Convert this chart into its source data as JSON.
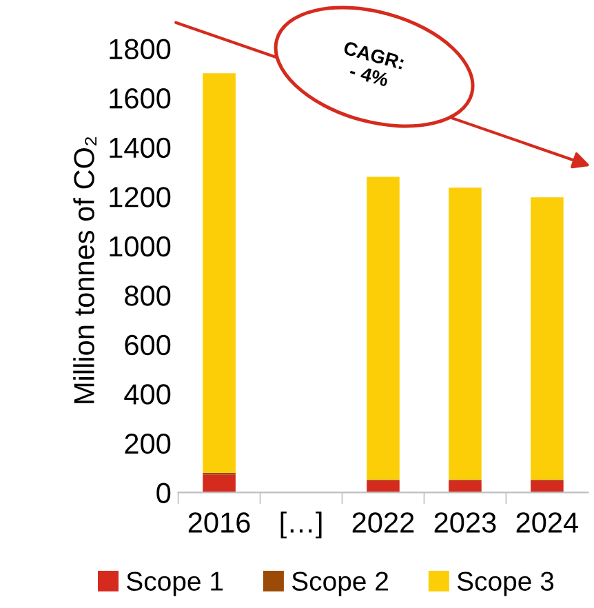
{
  "chart_data": {
    "type": "bar",
    "stacked": true,
    "ylabel": "Million tonnes of CO₂",
    "categories": [
      "2016",
      "[…]",
      "2022",
      "2023",
      "2024"
    ],
    "series": [
      {
        "name": "Scope 1",
        "color": "#d52b1e",
        "values": [
          72,
          null,
          48,
          48,
          48
        ]
      },
      {
        "name": "Scope 2",
        "color": "#9c4a07",
        "values": [
          8,
          null,
          4,
          4,
          4
        ]
      },
      {
        "name": "Scope 3",
        "color": "#fbce07",
        "values": [
          1620,
          null,
          1228,
          1184,
          1145
        ]
      }
    ],
    "ylim": [
      0,
      1800
    ],
    "yticks": [
      0,
      200,
      400,
      600,
      800,
      1000,
      1200,
      1400,
      1600,
      1800
    ],
    "annotations": [
      "CAGR:\n- 4%"
    ],
    "legend": "bottom",
    "grid": false
  }
}
